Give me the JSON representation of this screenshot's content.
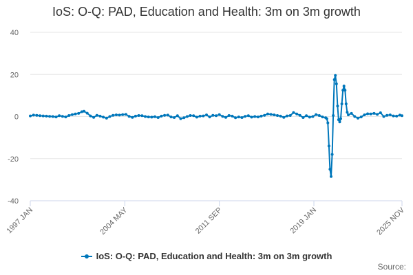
{
  "chart_data": {
    "type": "line",
    "title": "IoS: O-Q: PAD, Education and Health: 3m on 3m growth",
    "xlabel": "",
    "ylabel": "",
    "ylim": [
      -40,
      40
    ],
    "yticks": [
      40,
      20,
      0,
      -20,
      -40
    ],
    "xticks": [
      "1997 JAN",
      "2004 MAY",
      "2011 SEP",
      "2019 JAN",
      "2025 NOV"
    ],
    "x_range": [
      "1997 JAN",
      "2025 NOV"
    ],
    "grid": "horizontal",
    "legend": "bottom",
    "color": "#0077bb",
    "series": [
      {
        "name": "IoS: O-Q: PAD, Education and Health: 3m on 3m growth",
        "points": [
          [
            "1997-01",
            0.3
          ],
          [
            "1997-04",
            0.7
          ],
          [
            "1997-07",
            0.6
          ],
          [
            "1997-10",
            0.4
          ],
          [
            "1998-01",
            0.3
          ],
          [
            "1998-04",
            0.2
          ],
          [
            "1998-07",
            0.1
          ],
          [
            "1998-10",
            0.0
          ],
          [
            "1999-01",
            -0.2
          ],
          [
            "1999-04",
            0.4
          ],
          [
            "1999-07",
            0.1
          ],
          [
            "1999-10",
            -0.2
          ],
          [
            "2000-01",
            0.5
          ],
          [
            "2000-04",
            0.9
          ],
          [
            "2000-07",
            1.2
          ],
          [
            "2000-10",
            1.5
          ],
          [
            "2001-01",
            2.3
          ],
          [
            "2001-03",
            2.5
          ],
          [
            "2001-06",
            1.6
          ],
          [
            "2001-09",
            0.3
          ],
          [
            "2001-12",
            -0.4
          ],
          [
            "2002-03",
            0.6
          ],
          [
            "2002-06",
            0.2
          ],
          [
            "2002-09",
            -0.3
          ],
          [
            "2002-12",
            -0.8
          ],
          [
            "2003-03",
            0.0
          ],
          [
            "2003-06",
            0.6
          ],
          [
            "2003-09",
            0.8
          ],
          [
            "2003-12",
            0.7
          ],
          [
            "2004-03",
            0.9
          ],
          [
            "2004-06",
            1.0
          ],
          [
            "2004-09",
            0.1
          ],
          [
            "2004-12",
            -0.4
          ],
          [
            "2005-03",
            0.2
          ],
          [
            "2005-06",
            0.5
          ],
          [
            "2005-09",
            0.4
          ],
          [
            "2005-12",
            0.0
          ],
          [
            "2006-03",
            -0.2
          ],
          [
            "2006-06",
            -0.3
          ],
          [
            "2006-09",
            -0.1
          ],
          [
            "2006-12",
            -0.5
          ],
          [
            "2007-03",
            0.2
          ],
          [
            "2007-06",
            0.6
          ],
          [
            "2007-09",
            0.7
          ],
          [
            "2007-12",
            -0.2
          ],
          [
            "2008-03",
            -0.5
          ],
          [
            "2008-06",
            0.4
          ],
          [
            "2008-09",
            -1.0
          ],
          [
            "2008-12",
            -0.6
          ],
          [
            "2009-03",
            0.0
          ],
          [
            "2009-06",
            0.5
          ],
          [
            "2009-09",
            0.4
          ],
          [
            "2009-12",
            -0.3
          ],
          [
            "2010-03",
            0.2
          ],
          [
            "2010-06",
            0.3
          ],
          [
            "2010-09",
            0.8
          ],
          [
            "2010-12",
            -0.2
          ],
          [
            "2011-03",
            0.6
          ],
          [
            "2011-06",
            0.4
          ],
          [
            "2011-09",
            0.9
          ],
          [
            "2011-12",
            0.1
          ],
          [
            "2012-03",
            -0.4
          ],
          [
            "2012-06",
            0.5
          ],
          [
            "2012-09",
            0.2
          ],
          [
            "2012-12",
            -0.6
          ],
          [
            "2013-03",
            -0.2
          ],
          [
            "2013-06",
            -0.5
          ],
          [
            "2013-09",
            0.1
          ],
          [
            "2013-12",
            0.4
          ],
          [
            "2014-03",
            -0.3
          ],
          [
            "2014-06",
            0.0
          ],
          [
            "2014-09",
            -0.2
          ],
          [
            "2014-12",
            0.2
          ],
          [
            "2015-03",
            0.6
          ],
          [
            "2015-06",
            1.2
          ],
          [
            "2015-09",
            1.0
          ],
          [
            "2015-12",
            0.8
          ],
          [
            "2016-03",
            0.5
          ],
          [
            "2016-06",
            0.2
          ],
          [
            "2016-09",
            -0.4
          ],
          [
            "2016-12",
            0.3
          ],
          [
            "2017-03",
            0.5
          ],
          [
            "2017-06",
            1.9
          ],
          [
            "2017-09",
            1.2
          ],
          [
            "2017-12",
            0.6
          ],
          [
            "2018-03",
            -0.5
          ],
          [
            "2018-06",
            0.4
          ],
          [
            "2018-09",
            -0.3
          ],
          [
            "2018-12",
            0.0
          ],
          [
            "2019-03",
            0.9
          ],
          [
            "2019-06",
            0.5
          ],
          [
            "2019-09",
            -0.2
          ],
          [
            "2019-12",
            -0.6
          ],
          [
            "2020-01",
            -1.0
          ],
          [
            "2020-02",
            -3.0
          ],
          [
            "2020-03",
            -14.0
          ],
          [
            "2020-04",
            -25.0
          ],
          [
            "2020-05",
            -28.5
          ],
          [
            "2020-06",
            -18.0
          ],
          [
            "2020-07",
            0.5
          ],
          [
            "2020-08",
            17.5
          ],
          [
            "2020-09",
            19.5
          ],
          [
            "2020-10",
            15.5
          ],
          [
            "2020-11",
            5.0
          ],
          [
            "2020-12",
            -1.5
          ],
          [
            "2021-01",
            -2.5
          ],
          [
            "2021-02",
            -1.0
          ],
          [
            "2021-03",
            6.0
          ],
          [
            "2021-04",
            12.5
          ],
          [
            "2021-05",
            14.5
          ],
          [
            "2021-06",
            12.5
          ],
          [
            "2021-07",
            6.0
          ],
          [
            "2021-08",
            2.0
          ],
          [
            "2021-09",
            0.8
          ],
          [
            "2021-12",
            1.5
          ],
          [
            "2022-03",
            0.0
          ],
          [
            "2022-06",
            -0.8
          ],
          [
            "2022-09",
            -0.2
          ],
          [
            "2022-12",
            0.8
          ],
          [
            "2023-03",
            1.3
          ],
          [
            "2023-06",
            1.2
          ],
          [
            "2023-09",
            1.5
          ],
          [
            "2023-12",
            1.0
          ],
          [
            "2024-03",
            1.8
          ],
          [
            "2024-06",
            0.0
          ],
          [
            "2024-09",
            0.6
          ],
          [
            "2024-12",
            0.8
          ],
          [
            "2025-03",
            0.3
          ],
          [
            "2025-06",
            0.2
          ],
          [
            "2025-09",
            0.7
          ],
          [
            "2025-11",
            0.4
          ]
        ]
      }
    ]
  },
  "legend": {
    "label": "IoS: O-Q: PAD, Education and Health: 3m on 3m growth"
  },
  "footer": {
    "source_label": "Source:"
  }
}
